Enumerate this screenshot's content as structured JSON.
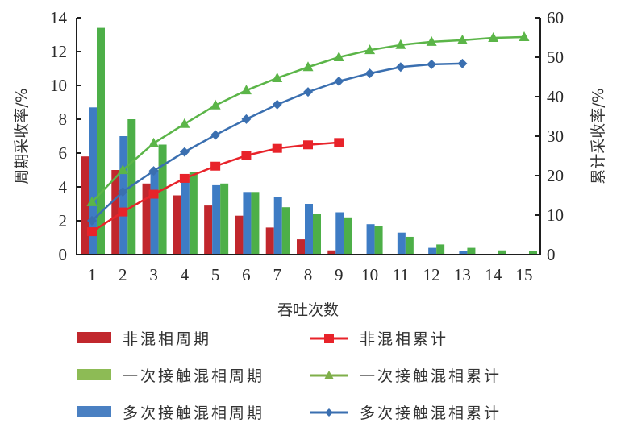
{
  "chart_data": {
    "type": "bar+line",
    "title": "",
    "xlabel": "吞吐次数",
    "ylabel": "周期采收率/%",
    "y2label": "累计采收率/%",
    "categories": [
      1,
      2,
      3,
      4,
      5,
      6,
      7,
      8,
      9,
      10,
      11,
      12,
      13,
      14,
      15
    ],
    "ylim": [
      0,
      14
    ],
    "yticks": [
      0,
      2,
      4,
      6,
      8,
      10,
      12,
      14
    ],
    "y2lim": [
      0,
      60
    ],
    "y2ticks": [
      0,
      10,
      20,
      30,
      40,
      50,
      60
    ],
    "grid": false,
    "legend_position": "bottom",
    "series": [
      {
        "name": "非混相周期",
        "kind": "bar",
        "axis": "left",
        "color": "#C1272D",
        "values": [
          5.8,
          5.0,
          4.2,
          3.5,
          2.9,
          2.3,
          1.6,
          0.9,
          0.25,
          null,
          null,
          null,
          null,
          null,
          null
        ]
      },
      {
        "name": "一次接触混相周期",
        "kind": "bar",
        "axis": "left",
        "color": "#4DAF48",
        "legend_color": "#8DBB55",
        "values": [
          13.4,
          8.0,
          6.5,
          4.9,
          4.2,
          3.7,
          2.8,
          2.4,
          2.2,
          1.7,
          1.05,
          0.6,
          0.4,
          0.25,
          0.2
        ]
      },
      {
        "name": "多次接触混相周期",
        "kind": "bar",
        "axis": "left",
        "color": "#3E7CC4",
        "legend_color": "#4A80C2",
        "values": [
          8.7,
          7.0,
          5.0,
          4.5,
          4.1,
          3.7,
          3.4,
          3.0,
          2.5,
          1.8,
          1.3,
          0.4,
          0.2,
          null,
          null
        ]
      },
      {
        "name": "非混相累计",
        "kind": "line",
        "axis": "right",
        "marker": "square",
        "color": "#E8232A",
        "values": [
          5.8,
          10.8,
          15.3,
          19.3,
          22.4,
          25.1,
          26.9,
          27.8,
          28.4,
          null,
          null,
          null,
          null,
          null,
          null
        ]
      },
      {
        "name": "一次接触混相累计",
        "kind": "line",
        "axis": "right",
        "marker": "triangle",
        "color": "#5BB548",
        "legend_color": "#7FAF4A",
        "values": [
          13.3,
          21.4,
          28.2,
          33.1,
          37.8,
          41.6,
          44.7,
          47.5,
          50.0,
          51.8,
          53.1,
          53.9,
          54.3,
          54.9,
          55.1
        ]
      },
      {
        "name": "多次接触混相累计",
        "kind": "line",
        "axis": "right",
        "marker": "diamond",
        "color": "#3A6FB0",
        "values": [
          8.6,
          15.9,
          21.2,
          26.0,
          30.3,
          34.3,
          38.0,
          41.2,
          43.9,
          45.9,
          47.5,
          48.2,
          48.4,
          null,
          null
        ]
      }
    ]
  },
  "legend": {
    "items": [
      {
        "label": "非混相周期"
      },
      {
        "label": "非混相累计"
      },
      {
        "label": "一次接触混相周期"
      },
      {
        "label": "一次接触混相累计"
      },
      {
        "label": "多次接触混相周期"
      },
      {
        "label": "多次接触混相累计"
      }
    ]
  }
}
